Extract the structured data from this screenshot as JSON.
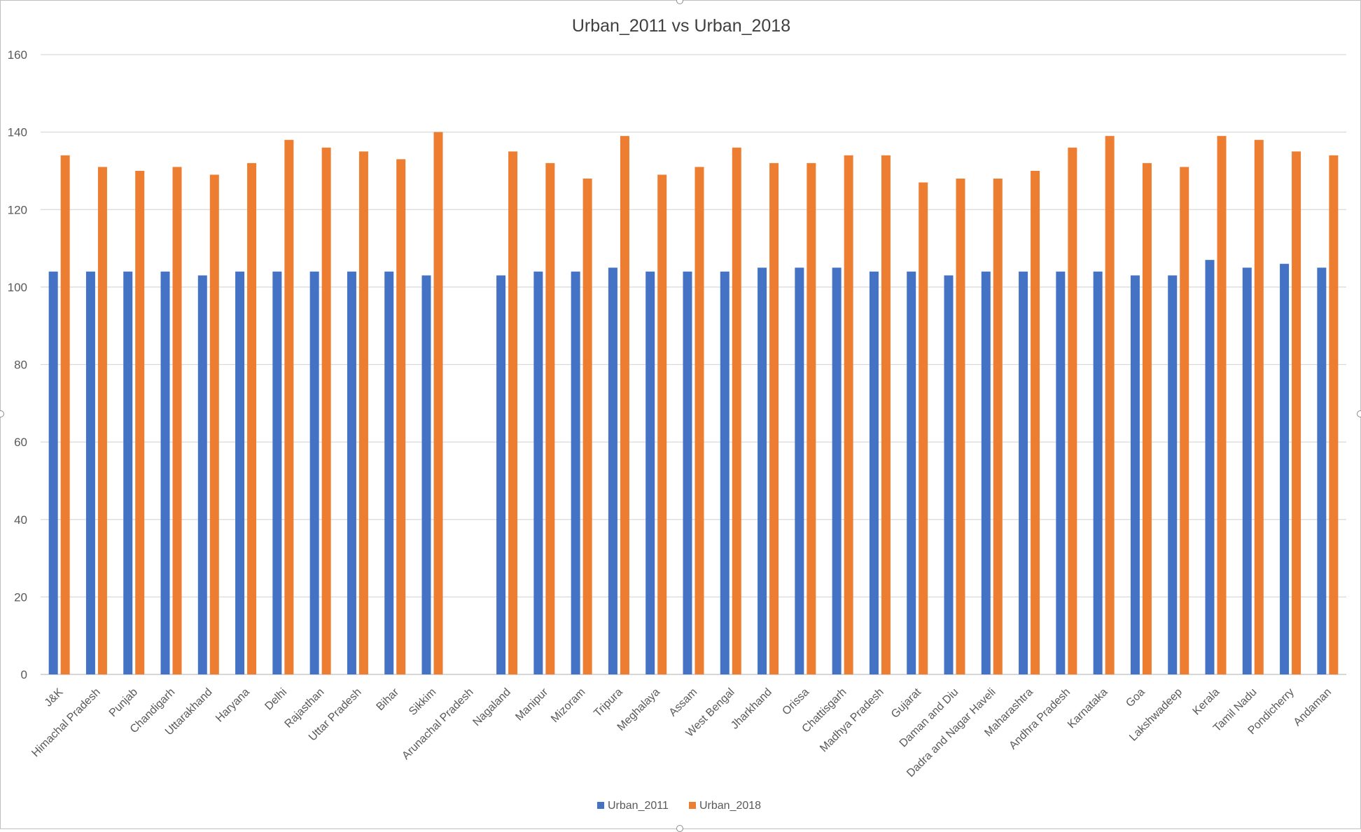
{
  "chart_data": {
    "type": "bar",
    "title": "Urban_2011 vs Urban_2018",
    "xlabel": "",
    "ylabel": "",
    "ylim": [
      0,
      160
    ],
    "yticks": [
      "0",
      "20",
      "40",
      "60",
      "80",
      "100",
      "120",
      "140",
      "160"
    ],
    "grid": true,
    "legend_position": "bottom",
    "categories": [
      "J&K",
      "Himachal Pradesh",
      "Punjab",
      "Chandigarh",
      "Uttarakhand",
      "Haryana",
      "Delhi",
      "Rajasthan",
      "Uttar Pradesh",
      "Bihar",
      "Sikkim",
      "Arunachal Pradesh",
      "Nagaland",
      "Manipur",
      "Mizoram",
      "Tripura",
      "Meghalaya",
      "Assam",
      "West Bengal",
      "Jharkhand",
      "Orissa",
      "Chattisgarh",
      "Madhya Pradesh",
      "Gujarat",
      "Daman and Diu",
      "Dadra and Nagar Haveli",
      "Maharashtra",
      "Andhra Pradesh",
      "Karnataka",
      "Goa",
      "Lakshwadeep",
      "Kerala",
      "Tamil Nadu",
      "Pondicherry",
      "Andaman"
    ],
    "series": [
      {
        "name": "Urban_2011",
        "color": "#4472C4",
        "values": [
          104,
          104,
          104,
          104,
          103,
          104,
          104,
          104,
          104,
          104,
          103,
          null,
          103,
          104,
          104,
          105,
          104,
          104,
          104,
          105,
          105,
          105,
          104,
          104,
          103,
          104,
          104,
          104,
          104,
          103,
          103,
          107,
          105,
          106,
          105
        ]
      },
      {
        "name": "Urban_2018",
        "color": "#ED7D31",
        "values": [
          134,
          131,
          130,
          131,
          129,
          132,
          138,
          136,
          135,
          133,
          140,
          null,
          135,
          132,
          128,
          139,
          129,
          131,
          136,
          132,
          132,
          134,
          134,
          127,
          128,
          128,
          130,
          136,
          139,
          132,
          131,
          139,
          138,
          135,
          134
        ]
      }
    ]
  }
}
